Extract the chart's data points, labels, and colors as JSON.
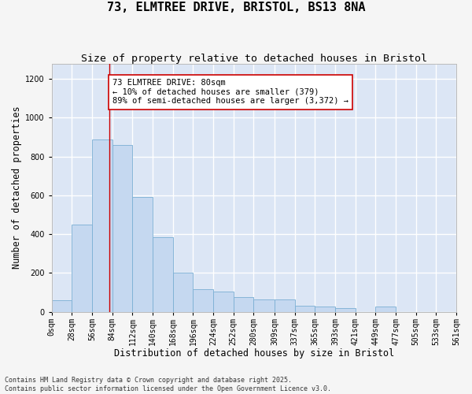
{
  "title_line1": "73, ELMTREE DRIVE, BRISTOL, BS13 8NA",
  "title_line2": "Size of property relative to detached houses in Bristol",
  "xlabel": "Distribution of detached houses by size in Bristol",
  "ylabel": "Number of detached properties",
  "annotation_text": "73 ELMTREE DRIVE: 80sqm\n← 10% of detached houses are smaller (379)\n89% of semi-detached houses are larger (3,372) →",
  "footer_line1": "Contains HM Land Registry data © Crown copyright and database right 2025.",
  "footer_line2": "Contains public sector information licensed under the Open Government Licence v3.0.",
  "bar_color": "#c5d8f0",
  "bar_edge_color": "#7bafd4",
  "background_color": "#dce6f5",
  "grid_color": "#ffffff",
  "fig_bg_color": "#f5f5f5",
  "vline_x": 80,
  "vline_color": "#cc0000",
  "annotation_box_color": "#cc0000",
  "bin_edges": [
    0,
    28,
    56,
    84,
    112,
    140,
    168,
    196,
    224,
    252,
    280,
    309,
    337,
    365,
    393,
    421,
    449,
    477,
    505,
    533,
    561
  ],
  "bar_heights": [
    60,
    450,
    890,
    860,
    590,
    385,
    200,
    115,
    105,
    75,
    65,
    65,
    30,
    25,
    20,
    0,
    25,
    0,
    0,
    0
  ],
  "ylim": [
    0,
    1280
  ],
  "yticks": [
    0,
    200,
    400,
    600,
    800,
    1000,
    1200
  ],
  "title_fontsize": 11,
  "subtitle_fontsize": 9.5,
  "xlabel_fontsize": 8.5,
  "ylabel_fontsize": 8.5,
  "tick_fontsize": 7,
  "annotation_fontsize": 7.5,
  "footer_fontsize": 6
}
